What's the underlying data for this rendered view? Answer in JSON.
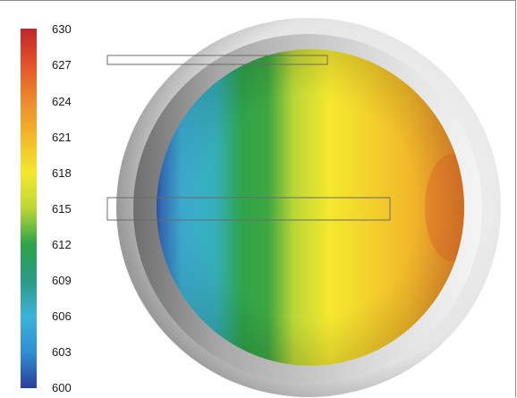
{
  "colorbar": {
    "ticks": [
      "630",
      "627",
      "624",
      "621",
      "618",
      "615",
      "612",
      "609",
      "606",
      "603",
      "600"
    ],
    "colors": [
      "#c0262a",
      "#e5522a",
      "#ec8a2c",
      "#f2b82a",
      "#f4e830",
      "#bcd636",
      "#2ea34a",
      "#2b9a86",
      "#3eb2d8",
      "#2f8fd2",
      "#2b3f9a"
    ]
  }
}
